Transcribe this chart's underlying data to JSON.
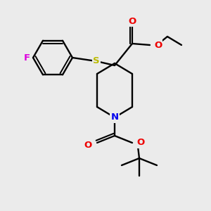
{
  "background_color": "#ebebeb",
  "atom_colors": {
    "C": "#000000",
    "N": "#0000ee",
    "O": "#ee0000",
    "S": "#bbbb00",
    "F": "#dd00dd"
  },
  "bond_color": "#000000",
  "figsize": [
    3.0,
    3.0
  ],
  "dpi": 100
}
